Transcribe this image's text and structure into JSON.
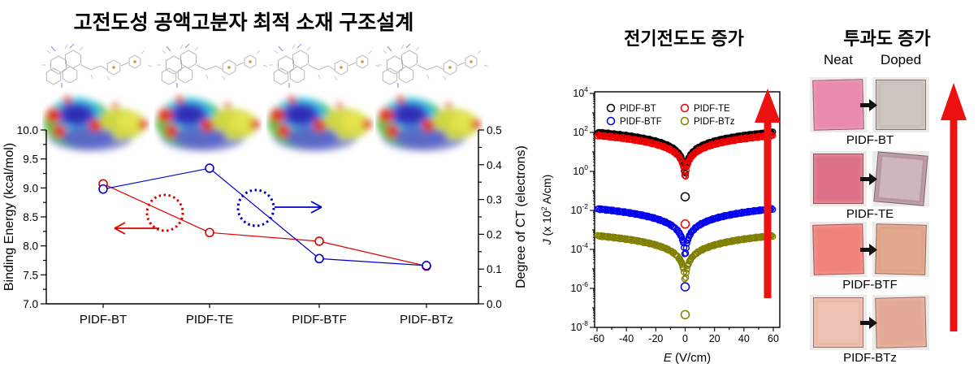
{
  "left_panel": {
    "title": "고전도성 공액고분자 최적 소재 구조설계",
    "left_axis_label": "Binding Energy (kcal/mol)",
    "right_axis_label": "Degree of CT (electrons)"
  },
  "middle_panel": {
    "title": "전기전도도 증가",
    "xlabel_italic": "E",
    "xlabel_rest": " (V/cm)",
    "ylabel_italic": "J",
    "ylabel_mid": " (x 10",
    "ylabel_sup": "2",
    "ylabel_end": " A/cm)"
  },
  "right_panel": {
    "title": "투과도 증가",
    "col_headers": [
      "Neat",
      "Doped"
    ],
    "rows": [
      {
        "label": "PIDF-BT",
        "neat_color": "#e989ae",
        "neat_inner": "",
        "doped_color": "#c7beb9",
        "doped_inner": "#cec6c0"
      },
      {
        "label": "PIDF-TE",
        "neat_color": "#dd7187",
        "neat_inner": "",
        "doped_color": "#b4929c",
        "doped_inner": "#cfb5bc"
      },
      {
        "label": "PIDF-BTF",
        "neat_color": "#f0827a",
        "neat_inner": "",
        "doped_color": "#dfa084",
        "doped_inner": "#e2a88d"
      },
      {
        "label": "PIDF-BTz",
        "neat_color": "#e9b5a6",
        "neat_inner": "#eec2b4",
        "doped_color": "#e3a896",
        "doped_inner": ""
      }
    ]
  },
  "colors": {
    "arrow_red": "#ee1111",
    "arrow_black": "#111111",
    "binding_series": "#dd0000",
    "ct_series": "#0000cc"
  },
  "chart_data": [
    {
      "type": "line",
      "title": "",
      "categories": [
        "PIDF-BT",
        "PIDF-TE",
        "PIDF-BTF",
        "PIDF-BTz"
      ],
      "series": [
        {
          "name": "Binding Energy",
          "axis": "left",
          "color": "#dd0000",
          "values": [
            9.07,
            8.23,
            8.08,
            7.65
          ]
        },
        {
          "name": "Degree of CT",
          "axis": "right",
          "color": "#0000cc",
          "values": [
            0.33,
            0.39,
            0.13,
            0.11
          ]
        }
      ],
      "left_axis": {
        "label": "Binding Energy (kcal/mol)",
        "min": 7.0,
        "max": 10.0,
        "tick_step": 0.5,
        "minor_step": 0.25
      },
      "right_axis": {
        "label": "Degree of CT (electrons)",
        "min": 0.0,
        "max": 0.5,
        "tick_step": 0.1,
        "minor_step": 0.05
      },
      "legend_position": "none",
      "grid": false
    },
    {
      "type": "scatter",
      "title": "",
      "xlabel": "E (V/cm)",
      "ylabel": "J (x 10^2 A/cm)",
      "x_range": [
        -60,
        60
      ],
      "x_tick_step": 20,
      "x_minor_step": 10,
      "y_log_range": [
        -8,
        4
      ],
      "y_label_every_decades": 2,
      "legend_position": "top-left-inside",
      "grid": false,
      "series": [
        {
          "name": "PIDF-BT",
          "color": "#000000",
          "j_at_60": 100,
          "exponent": 0.95,
          "min_abs_E": 0.4,
          "zero_field_point": 0.05
        },
        {
          "name": "PIDF-TE",
          "color": "#ee0000",
          "j_at_60": 70,
          "exponent": 0.95,
          "min_abs_E": 0.4,
          "zero_field_point": 0.002
        },
        {
          "name": "PIDF-BTF",
          "color": "#0000ee",
          "j_at_60": 0.012,
          "exponent": 1.05,
          "min_abs_E": 0.4,
          "zero_field_point": 1.2e-06
        },
        {
          "name": "PIDF-BTz",
          "color": "#808000",
          "j_at_60": 0.0005,
          "exponent": 1.0,
          "min_abs_E": 0.4,
          "zero_field_point": 4.5e-08
        }
      ]
    }
  ]
}
